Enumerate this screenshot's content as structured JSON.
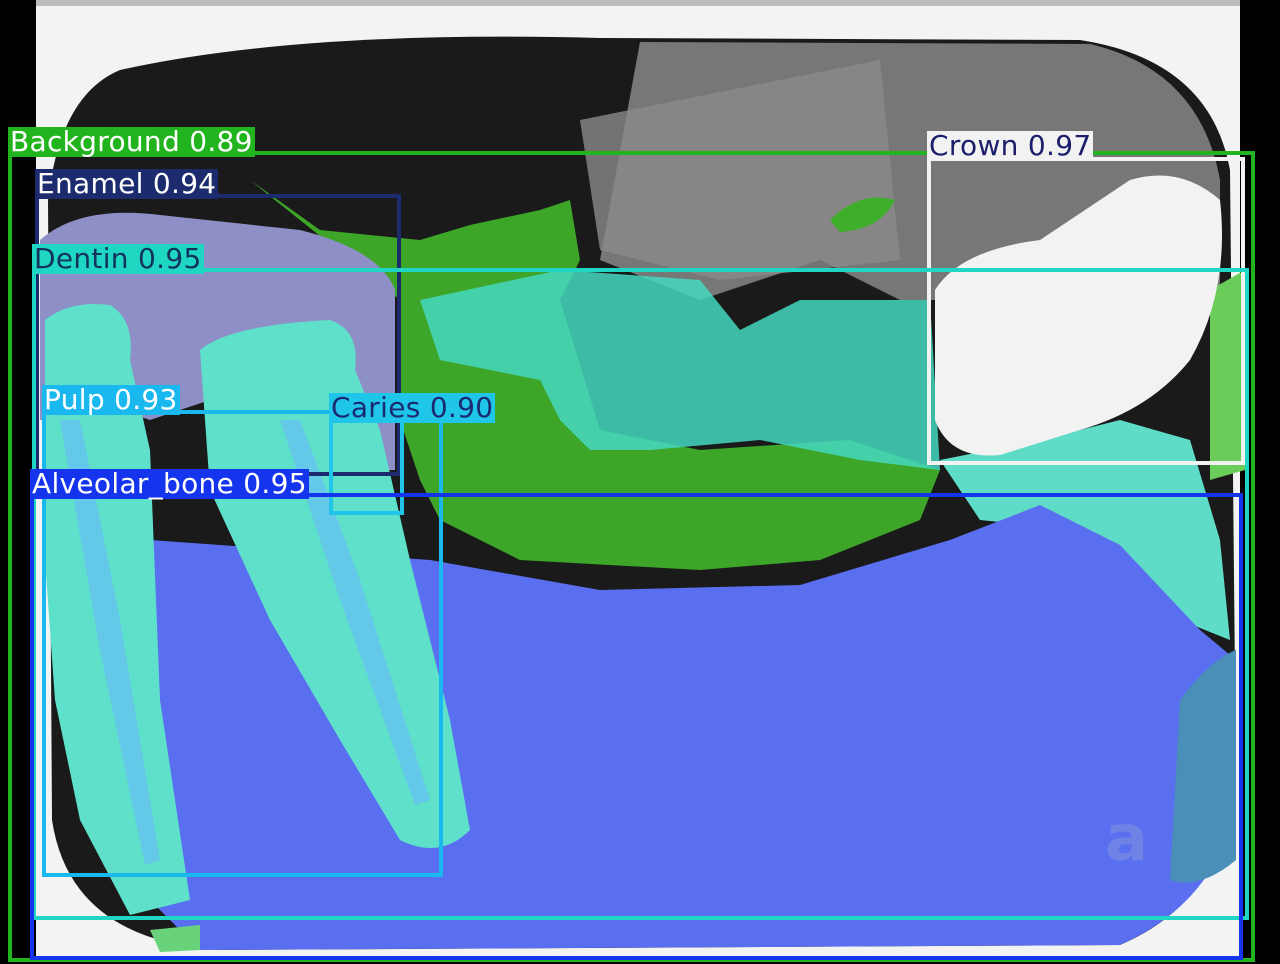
{
  "image": {
    "watermark_glyph": "a",
    "colors": {
      "film_background": "#f4f4f4",
      "dark_region": "#0a0a0a",
      "gray_region": "#7a7a7a",
      "bright_crown": "#f2f2f2",
      "overlay_background_green": "#3fae2a",
      "overlay_enamel": "#8e8fc6",
      "overlay_dentin": "#45d8c0",
      "overlay_pulp": "#64c8e8",
      "overlay_alveolar_bone": "#5a6ff0"
    }
  },
  "detections": [
    {
      "label": "Background",
      "score": "0.89",
      "text": "Background 0.89",
      "color": "#22b41e",
      "text_color": "#ffffff"
    },
    {
      "label": "Crown",
      "score": "0.97",
      "text": "Crown 0.97",
      "color": "#f2f2f2",
      "text_color": "#1b1f6b"
    },
    {
      "label": "Enamel",
      "score": "0.94",
      "text": "Enamel 0.94",
      "color": "#1c2a6e",
      "text_color": "#ffffff"
    },
    {
      "label": "Dentin",
      "score": "0.95",
      "text": "Dentin 0.95",
      "color": "#1fd6c2",
      "text_color": "#12335e"
    },
    {
      "label": "Pulp",
      "score": "0.93",
      "text": "Pulp 0.93",
      "color": "#19b8ee",
      "text_color": "#ffffff"
    },
    {
      "label": "Caries",
      "score": "0.90",
      "text": "Caries 0.90",
      "color": "#1fc6ea",
      "text_color": "#1a2a70"
    },
    {
      "label": "Alveolar_bone",
      "score": "0.95",
      "text": "Alveolar_bone 0.95",
      "color": "#1434ee",
      "text_color": "#ffffff"
    }
  ]
}
